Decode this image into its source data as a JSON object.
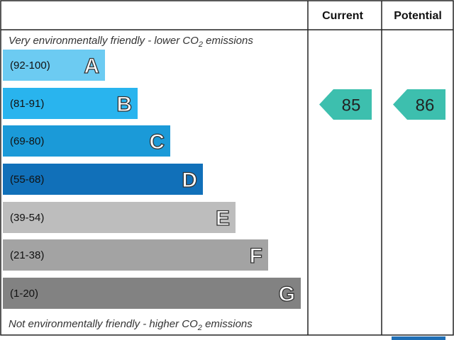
{
  "header": {
    "current": "Current",
    "potential": "Potential"
  },
  "top_note": {
    "before": "Very environmentally friendly - lower CO",
    "sub": "2",
    "after": " emissions"
  },
  "bottom_note": {
    "before": "Not environmentally friendly - higher CO",
    "sub": "2",
    "after": " emissions"
  },
  "bands": [
    {
      "range": "(92-100)",
      "letter": "A",
      "color": "#6ccbf2"
    },
    {
      "range": "(81-91)",
      "letter": "B",
      "color": "#29b4ee"
    },
    {
      "range": "(69-80)",
      "letter": "C",
      "color": "#1b9ad8"
    },
    {
      "range": "(55-68)",
      "letter": "D",
      "color": "#1170b9"
    },
    {
      "range": "(39-54)",
      "letter": "E",
      "color": "#bdbdbd"
    },
    {
      "range": "(21-38)",
      "letter": "F",
      "color": "#a3a3a3"
    },
    {
      "range": "(1-20)",
      "letter": "G",
      "color": "#828282"
    }
  ],
  "current": 85,
  "potential": 86,
  "arrow_color": "#3dbfae"
}
